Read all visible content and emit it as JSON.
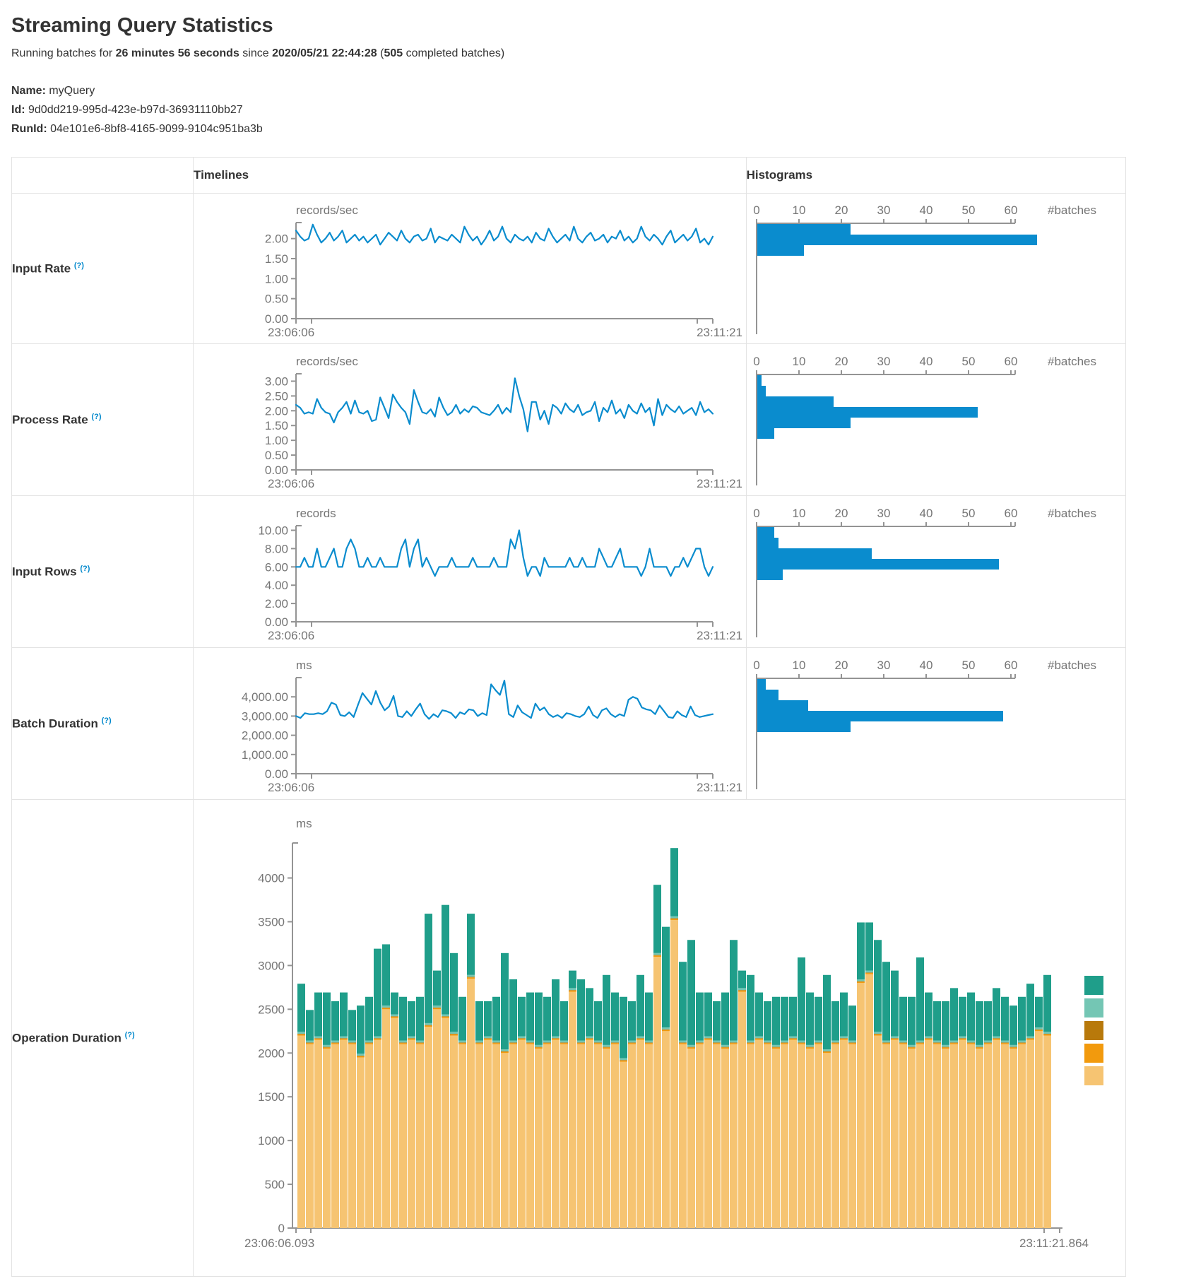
{
  "page": {
    "title": "Streaming Query Statistics",
    "subtitle": {
      "prefix": "Running batches for ",
      "duration": "26 minutes 56 seconds",
      "middle": " since ",
      "start_time": "2020/05/21 22:44:28",
      "paren_open": " (",
      "batch_count": "505",
      "suffix": " completed batches)"
    },
    "query": {
      "name_label": "Name:",
      "name_value": " myQuery",
      "id_label": "Id:",
      "id_value": " 9d0dd219-995d-423e-b97d-36931110bb27",
      "runid_label": "RunId:",
      "runid_value": " 04e101e6-8bf8-4165-9099-9104c951ba3b"
    }
  },
  "table": {
    "headers": {
      "timelines": "Timelines",
      "histograms": "Histograms"
    },
    "rows": [
      {
        "label": "Input Rate",
        "help": "(?)"
      },
      {
        "label": "Process Rate",
        "help": "(?)"
      },
      {
        "label": "Input Rows",
        "help": "(?)"
      },
      {
        "label": "Batch Duration",
        "help": "(?)"
      },
      {
        "label": "Operation Duration",
        "help": "(?)"
      }
    ]
  },
  "colors": {
    "line": "#0a8cce",
    "hist_bar": "#0a8cce",
    "axis": "#949494",
    "tick_text": "#757575",
    "help": "#0088cc",
    "op_green": "#1f9e8a",
    "op_teal_light": "#74C6B4",
    "op_ochre": "#B8790B",
    "op_orange": "#F29A0D",
    "op_tan": "#F6C472"
  },
  "chart_data": [
    {
      "id": "input_rate_timeline",
      "type": "line",
      "unit": "records/sec",
      "x_start": "23:06:06",
      "x_end": "23:11:21",
      "ylim": [
        0,
        2.4
      ],
      "yticks": [
        {
          "v": 0,
          "t": "0.00"
        },
        {
          "v": 0.5,
          "t": "0.50"
        },
        {
          "v": 1,
          "t": "1.00"
        },
        {
          "v": 1.5,
          "t": "1.50"
        },
        {
          "v": 2,
          "t": "2.00"
        }
      ],
      "values": [
        2.2,
        2.05,
        1.95,
        2.0,
        2.35,
        2.1,
        1.9,
        2.0,
        2.15,
        1.95,
        2.05,
        2.2,
        1.9,
        2.0,
        2.1,
        1.95,
        2.05,
        1.9,
        2.0,
        2.1,
        1.85,
        2.0,
        2.15,
        2.05,
        1.95,
        2.2,
        2.0,
        1.9,
        2.05,
        2.1,
        1.95,
        2.0,
        2.25,
        1.9,
        2.05,
        2.0,
        1.95,
        2.1,
        2.0,
        1.9,
        2.3,
        2.1,
        1.95,
        2.05,
        1.85,
        2.0,
        2.2,
        1.95,
        2.05,
        2.3,
        2.0,
        1.9,
        2.1,
        2.0,
        1.95,
        2.05,
        1.9,
        2.15,
        2.0,
        1.95,
        2.25,
        2.05,
        1.9,
        2.0,
        2.1,
        1.95,
        2.3,
        2.0,
        1.9,
        2.05,
        2.15,
        1.95,
        2.0,
        2.1,
        1.9,
        2.05,
        2.0,
        2.2,
        1.95,
        2.05,
        1.9,
        2.0,
        2.3,
        2.05,
        1.95,
        2.1,
        2.0,
        1.85,
        2.05,
        2.2,
        1.9,
        2.0,
        2.1,
        1.95,
        2.05,
        2.25,
        1.9,
        2.0,
        1.85,
        2.05
      ]
    },
    {
      "id": "input_rate_hist",
      "type": "hist",
      "xlabel": "#batches",
      "xticks": [
        0,
        10,
        20,
        30,
        40,
        50,
        60
      ],
      "values": [
        22,
        66,
        11
      ]
    },
    {
      "id": "process_rate_timeline",
      "type": "line",
      "unit": "records/sec",
      "x_start": "23:06:06",
      "x_end": "23:11:21",
      "ylim": [
        0,
        3.25
      ],
      "yticks": [
        {
          "v": 0,
          "t": "0.00"
        },
        {
          "v": 0.5,
          "t": "0.50"
        },
        {
          "v": 1,
          "t": "1.00"
        },
        {
          "v": 1.5,
          "t": "1.50"
        },
        {
          "v": 2,
          "t": "2.00"
        },
        {
          "v": 2.5,
          "t": "2.50"
        },
        {
          "v": 3,
          "t": "3.00"
        }
      ],
      "values": [
        2.2,
        2.1,
        1.9,
        1.95,
        1.9,
        2.4,
        2.1,
        1.95,
        1.9,
        1.6,
        1.95,
        2.1,
        2.3,
        1.9,
        2.35,
        1.95,
        1.9,
        2.0,
        1.65,
        1.7,
        2.45,
        2.1,
        1.75,
        2.55,
        2.3,
        2.1,
        1.95,
        1.55,
        2.7,
        2.3,
        1.95,
        1.9,
        2.05,
        1.8,
        2.45,
        2.1,
        1.85,
        1.95,
        2.2,
        1.9,
        2.05,
        1.95,
        2.15,
        2.1,
        1.95,
        1.9,
        1.85,
        2.0,
        2.2,
        1.9,
        2.1,
        1.95,
        3.1,
        2.5,
        2.05,
        1.3,
        2.3,
        2.3,
        1.7,
        2.0,
        1.55,
        2.2,
        2.1,
        1.9,
        2.25,
        2.05,
        1.95,
        2.2,
        1.85,
        1.95,
        2.0,
        2.3,
        1.65,
        2.1,
        1.95,
        2.35,
        1.9,
        2.05,
        1.75,
        2.2,
        2.0,
        1.9,
        2.25,
        1.95,
        2.1,
        1.5,
        2.4,
        1.85,
        2.2,
        2.05,
        1.95,
        2.15,
        1.9,
        2.0,
        2.1,
        1.85,
        2.3,
        1.95,
        2.05,
        1.9
      ]
    },
    {
      "id": "process_rate_hist",
      "type": "hist",
      "xlabel": "#batches",
      "xticks": [
        0,
        10,
        20,
        30,
        40,
        50,
        60
      ],
      "values": [
        1,
        2,
        18,
        52,
        22,
        4
      ]
    },
    {
      "id": "input_rows_timeline",
      "type": "line",
      "unit": "records",
      "x_start": "23:06:06",
      "x_end": "23:11:21",
      "ylim": [
        0,
        10.5
      ],
      "yticks": [
        {
          "v": 0,
          "t": "0.00"
        },
        {
          "v": 2,
          "t": "2.00"
        },
        {
          "v": 4,
          "t": "4.00"
        },
        {
          "v": 6,
          "t": "6.00"
        },
        {
          "v": 8,
          "t": "8.00"
        },
        {
          "v": 10,
          "t": "10.00"
        }
      ],
      "values": [
        6,
        6,
        7,
        6,
        6,
        8,
        6,
        6,
        7,
        8,
        6,
        6,
        8,
        9,
        8,
        6,
        6,
        7,
        6,
        6,
        7,
        6,
        6,
        6,
        6,
        8,
        9,
        6,
        8,
        9,
        6,
        7,
        6,
        5,
        6,
        6,
        6,
        7,
        6,
        6,
        6,
        6,
        7,
        6,
        6,
        6,
        6,
        7,
        6,
        6,
        6,
        9,
        8,
        10,
        7,
        5,
        6,
        6,
        5,
        7,
        6,
        6,
        6,
        6,
        6,
        7,
        6,
        6,
        7,
        6,
        6,
        6,
        8,
        7,
        6,
        6,
        7,
        8,
        6,
        6,
        6,
        6,
        5,
        6,
        8,
        6,
        6,
        6,
        6,
        5,
        6,
        6,
        7,
        6,
        7,
        8,
        8,
        6,
        5,
        6
      ]
    },
    {
      "id": "input_rows_hist",
      "type": "hist",
      "xlabel": "#batches",
      "xticks": [
        0,
        10,
        20,
        30,
        40,
        50,
        60
      ],
      "values": [
        4,
        5,
        27,
        57,
        6
      ]
    },
    {
      "id": "batch_duration_timeline",
      "type": "line",
      "unit": "ms",
      "x_start": "23:06:06",
      "x_end": "23:11:21",
      "ylim": [
        0,
        5000
      ],
      "yticks": [
        {
          "v": 0,
          "t": "0.00"
        },
        {
          "v": 1000,
          "t": "1,000.00"
        },
        {
          "v": 2000,
          "t": "2,000.00"
        },
        {
          "v": 3000,
          "t": "3,000.00"
        },
        {
          "v": 4000,
          "t": "4,000.00"
        }
      ],
      "values": [
        3000,
        2900,
        3150,
        3100,
        3100,
        3150,
        3100,
        3250,
        3700,
        3600,
        3050,
        3000,
        3200,
        2950,
        3600,
        4200,
        3900,
        3600,
        4300,
        3700,
        3300,
        3500,
        4050,
        3000,
        2950,
        3250,
        3000,
        3350,
        3650,
        3100,
        2850,
        3100,
        2950,
        3300,
        3250,
        3150,
        2900,
        3200,
        3100,
        3350,
        3300,
        3000,
        3150,
        3050,
        4650,
        4350,
        4100,
        4850,
        3100,
        2950,
        3550,
        3200,
        3050,
        2900,
        3650,
        3300,
        3450,
        3100,
        2950,
        3050,
        2900,
        3150,
        3100,
        3000,
        2950,
        3100,
        3500,
        3050,
        2900,
        3300,
        3400,
        3100,
        2950,
        3100,
        3000,
        3850,
        4000,
        3900,
        3450,
        3350,
        3300,
        3100,
        3550,
        3250,
        2950,
        2900,
        3250,
        3050,
        2950,
        3500,
        3050,
        2950,
        3000,
        3050,
        3100
      ]
    },
    {
      "id": "batch_duration_hist",
      "type": "hist",
      "xlabel": "#batches",
      "xticks": [
        0,
        10,
        20,
        30,
        40,
        50,
        60
      ],
      "values": [
        2,
        5,
        12,
        58,
        22
      ]
    },
    {
      "id": "operation_duration",
      "type": "stacked-bar",
      "unit": "ms",
      "x_start": "23:06:06.093",
      "x_end": "23:11:21.864",
      "ylim": [
        0,
        4400
      ],
      "yticks": [
        {
          "v": 0,
          "t": "0"
        },
        {
          "v": 500,
          "t": "500"
        },
        {
          "v": 1000,
          "t": "1000"
        },
        {
          "v": 1500,
          "t": "1500"
        },
        {
          "v": 2000,
          "t": "2000"
        },
        {
          "v": 2500,
          "t": "2500"
        },
        {
          "v": 3000,
          "t": "3000"
        },
        {
          "v": 3500,
          "t": "3500"
        },
        {
          "v": 4000,
          "t": "4000"
        }
      ],
      "slivers": {
        "op_orange": 14,
        "op_ochre": 6,
        "op_teal_light": 22
      },
      "legend_colors": [
        "#1f9e8a",
        "#74C6B4",
        "#B8790B",
        "#F29A0D",
        "#F6C472"
      ],
      "bars": [
        [
          2200,
          550
        ],
        [
          2100,
          350
        ],
        [
          2150,
          500
        ],
        [
          2050,
          600
        ],
        [
          2100,
          450
        ],
        [
          2150,
          500
        ],
        [
          2100,
          350
        ],
        [
          1950,
          550
        ],
        [
          2100,
          500
        ],
        [
          2150,
          1000
        ],
        [
          2500,
          700
        ],
        [
          2400,
          250
        ],
        [
          2100,
          500
        ],
        [
          2150,
          400
        ],
        [
          2100,
          500
        ],
        [
          2300,
          1250
        ],
        [
          2500,
          400
        ],
        [
          2400,
          1250
        ],
        [
          2200,
          900
        ],
        [
          2100,
          500
        ],
        [
          2850,
          700
        ],
        [
          2100,
          450
        ],
        [
          2150,
          400
        ],
        [
          2100,
          500
        ],
        [
          2000,
          1100
        ],
        [
          2100,
          700
        ],
        [
          2150,
          450
        ],
        [
          2100,
          550
        ],
        [
          2050,
          600
        ],
        [
          2100,
          500
        ],
        [
          2150,
          650
        ],
        [
          2100,
          450
        ],
        [
          2700,
          200
        ],
        [
          2100,
          700
        ],
        [
          2150,
          550
        ],
        [
          2100,
          450
        ],
        [
          2050,
          800
        ],
        [
          2100,
          550
        ],
        [
          1900,
          700
        ],
        [
          2100,
          450
        ],
        [
          2150,
          700
        ],
        [
          2100,
          550
        ],
        [
          3100,
          780
        ],
        [
          2250,
          1150
        ],
        [
          3520,
          780
        ],
        [
          2100,
          900
        ],
        [
          2050,
          1200
        ],
        [
          2100,
          550
        ],
        [
          2150,
          500
        ],
        [
          2100,
          450
        ],
        [
          2050,
          600
        ],
        [
          2100,
          1150
        ],
        [
          2700,
          200
        ],
        [
          2100,
          750
        ],
        [
          2150,
          500
        ],
        [
          2100,
          450
        ],
        [
          2050,
          550
        ],
        [
          2100,
          500
        ],
        [
          2150,
          450
        ],
        [
          2100,
          950
        ],
        [
          2050,
          600
        ],
        [
          2100,
          500
        ],
        [
          2000,
          850
        ],
        [
          2100,
          450
        ],
        [
          2150,
          500
        ],
        [
          2100,
          400
        ],
        [
          2800,
          650
        ],
        [
          2900,
          550
        ],
        [
          2200,
          1050
        ],
        [
          2100,
          900
        ],
        [
          2150,
          750
        ],
        [
          2100,
          500
        ],
        [
          2050,
          550
        ],
        [
          2100,
          950
        ],
        [
          2150,
          500
        ],
        [
          2100,
          450
        ],
        [
          2050,
          500
        ],
        [
          2100,
          600
        ],
        [
          2150,
          450
        ],
        [
          2100,
          550
        ],
        [
          2050,
          500
        ],
        [
          2100,
          450
        ],
        [
          2150,
          550
        ],
        [
          2100,
          500
        ],
        [
          2050,
          450
        ],
        [
          2100,
          500
        ],
        [
          2150,
          600
        ],
        [
          2250,
          350
        ],
        [
          2200,
          650
        ]
      ]
    }
  ]
}
